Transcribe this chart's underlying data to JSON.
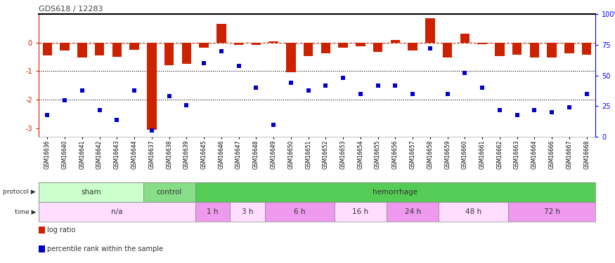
{
  "title": "GDS618 / 12283",
  "samples": [
    "GSM16636",
    "GSM16640",
    "GSM16641",
    "GSM16642",
    "GSM16643",
    "GSM16644",
    "GSM16637",
    "GSM16638",
    "GSM16639",
    "GSM16645",
    "GSM16646",
    "GSM16647",
    "GSM16648",
    "GSM16649",
    "GSM16650",
    "GSM16651",
    "GSM16652",
    "GSM16653",
    "GSM16654",
    "GSM16655",
    "GSM16656",
    "GSM16657",
    "GSM16658",
    "GSM16659",
    "GSM16660",
    "GSM16661",
    "GSM16662",
    "GSM16663",
    "GSM16664",
    "GSM16666",
    "GSM16667",
    "GSM16668"
  ],
  "log_ratio": [
    -0.45,
    -0.28,
    -0.52,
    -0.45,
    -0.5,
    -0.25,
    -3.05,
    -0.8,
    -0.75,
    -0.18,
    0.65,
    -0.08,
    -0.08,
    0.05,
    -1.05,
    -0.48,
    -0.38,
    -0.18,
    -0.12,
    -0.32,
    0.1,
    -0.28,
    0.85,
    -0.52,
    0.32,
    -0.05,
    -0.48,
    -0.42,
    -0.52,
    -0.52,
    -0.38,
    -0.42
  ],
  "pct_rank": [
    18,
    30,
    38,
    22,
    14,
    38,
    5,
    33,
    26,
    60,
    70,
    58,
    40,
    10,
    44,
    38,
    42,
    48,
    35,
    42,
    42,
    35,
    72,
    35,
    52,
    40,
    22,
    18,
    22,
    20,
    24,
    35
  ],
  "protocol_groups": [
    {
      "label": "sham",
      "start": 0,
      "end": 6,
      "color": "#ccffcc"
    },
    {
      "label": "control",
      "start": 6,
      "end": 9,
      "color": "#88dd88"
    },
    {
      "label": "hemorrhage",
      "start": 9,
      "end": 32,
      "color": "#55cc55"
    }
  ],
  "time_groups": [
    {
      "label": "n/a",
      "start": 0,
      "end": 9,
      "color": "#ffddff"
    },
    {
      "label": "1 h",
      "start": 9,
      "end": 11,
      "color": "#ee99ee"
    },
    {
      "label": "3 h",
      "start": 11,
      "end": 13,
      "color": "#ffddff"
    },
    {
      "label": "6 h",
      "start": 13,
      "end": 17,
      "color": "#ee99ee"
    },
    {
      "label": "16 h",
      "start": 17,
      "end": 20,
      "color": "#ffddff"
    },
    {
      "label": "24 h",
      "start": 20,
      "end": 23,
      "color": "#ee99ee"
    },
    {
      "label": "48 h",
      "start": 23,
      "end": 27,
      "color": "#ffddff"
    },
    {
      "label": "72 h",
      "start": 27,
      "end": 32,
      "color": "#ee99ee"
    }
  ],
  "bar_color": "#cc2200",
  "point_color": "#0000cc",
  "ylim_left": [
    -3.3,
    1.0
  ],
  "ylim_right": [
    0,
    100
  ],
  "bar_width": 0.55,
  "point_size": 16,
  "legend_items": [
    {
      "label": "log ratio",
      "color": "#cc2200"
    },
    {
      "label": "percentile rank within the sample",
      "color": "#0000cc"
    }
  ],
  "fig_width": 8.75,
  "fig_height": 3.75,
  "dpi": 100
}
